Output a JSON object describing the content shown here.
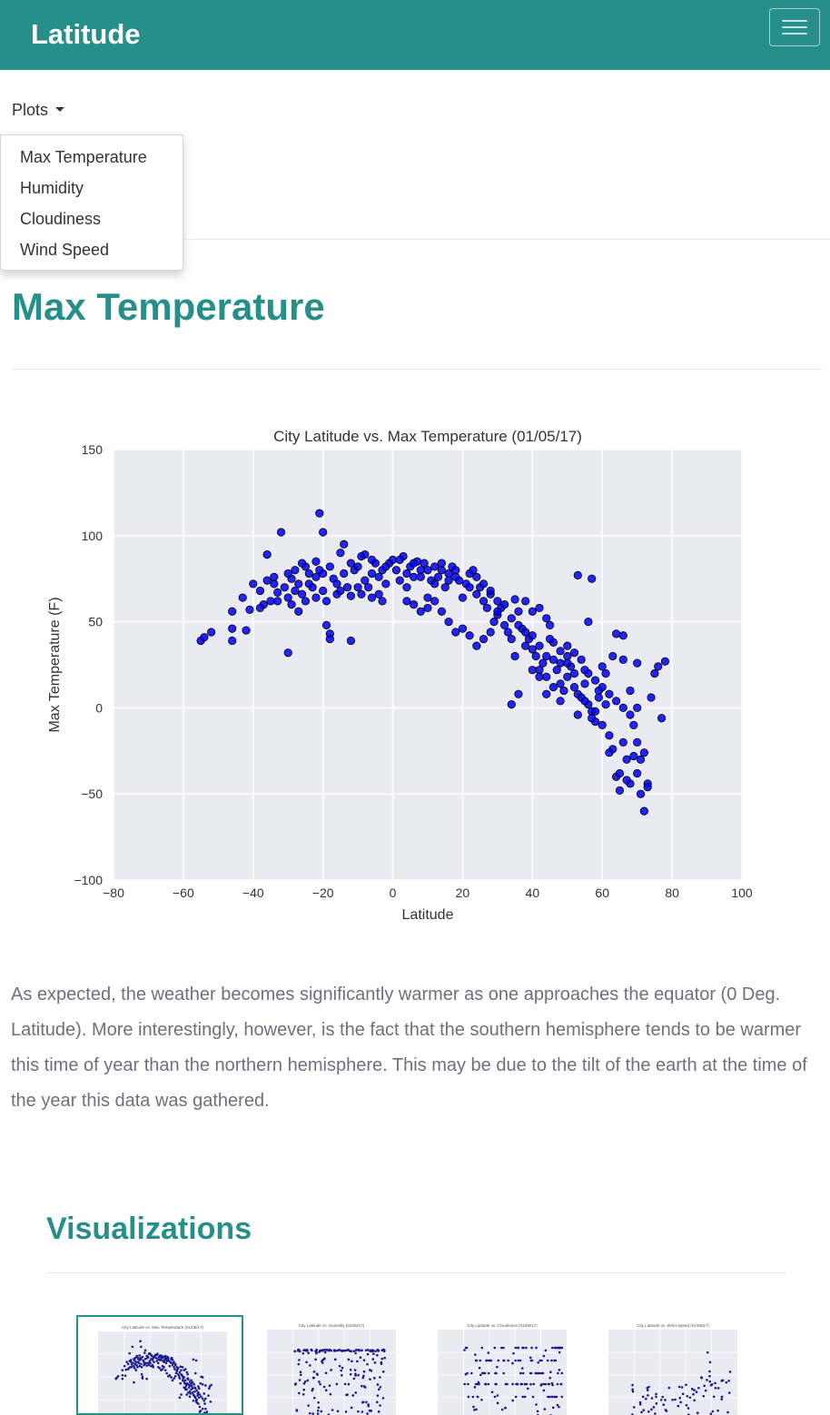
{
  "navbar": {
    "brand": "Latitude"
  },
  "nav": {
    "plots_label": "Plots",
    "menu_items": [
      "Max Temperature",
      "Humidity",
      "Cloudiness",
      "Wind Speed"
    ]
  },
  "page": {
    "title": "Max Temperature",
    "description": "As expected, the weather becomes significantly warmer as one approaches the equator (0 Deg. Latitude). More interestingly, however, is the fact that the southern hemisphere tends to be warmer this time of year than the northern hemisphere. This may be due to the tilt of the earth at the time of the year this data was gathered."
  },
  "visualizations": {
    "title": "Visualizations",
    "thumbs": [
      {
        "title": "City Latitude vs. Max Temperature (01/05/17)"
      },
      {
        "title": "City Latitude vs. Humidity (01/05/17)"
      },
      {
        "title": "City Latitude vs. Cloudiness (01/05/17)"
      },
      {
        "title": "City Latitude vs. Wind Speed (01/05/17)"
      }
    ]
  },
  "colors": {
    "accent": "#268f8a",
    "plot_bg": "#eaeaf2",
    "point": "#0000ff"
  },
  "chart_data": {
    "type": "scatter",
    "title": "City Latitude vs. Max Temperature (01/05/17)",
    "xlabel": "Latitude",
    "ylabel": "Max Temperature (F)",
    "xlim": [
      -80,
      100
    ],
    "ylim": [
      -100,
      150
    ],
    "xticks": [
      -80,
      -60,
      -40,
      -20,
      0,
      20,
      40,
      60,
      80,
      100
    ],
    "yticks": [
      -100,
      -50,
      0,
      50,
      100,
      150
    ],
    "tick_labels_x": [
      "−80",
      "−60",
      "−40",
      "−20",
      "0",
      "20",
      "40",
      "60",
      "80",
      "100"
    ],
    "tick_labels_y": [
      "−100",
      "−50",
      "0",
      "50",
      "100",
      "150"
    ],
    "grid": true,
    "points": [
      [
        -55,
        39
      ],
      [
        -54,
        41
      ],
      [
        -52,
        44
      ],
      [
        -46,
        56
      ],
      [
        -46,
        46
      ],
      [
        -46,
        39
      ],
      [
        -43,
        64
      ],
      [
        -42,
        45
      ],
      [
        -41,
        57
      ],
      [
        -38,
        68
      ],
      [
        -37,
        60
      ],
      [
        -36,
        89
      ],
      [
        -35,
        62
      ],
      [
        -34,
        72
      ],
      [
        -33,
        67
      ],
      [
        -32,
        102
      ],
      [
        -31,
        70
      ],
      [
        -30,
        64
      ],
      [
        -30,
        32
      ],
      [
        -29,
        75
      ],
      [
        -28,
        80
      ],
      [
        -27,
        72
      ],
      [
        -26,
        66
      ],
      [
        -25,
        82
      ],
      [
        -24,
        78
      ],
      [
        -23,
        70
      ],
      [
        -22,
        85
      ],
      [
        -21,
        113
      ],
      [
        -21,
        80
      ],
      [
        -20,
        102
      ],
      [
        -20,
        68
      ],
      [
        -19,
        48
      ],
      [
        -18,
        43
      ],
      [
        -18,
        40
      ],
      [
        -17,
        75
      ],
      [
        -16,
        72
      ],
      [
        -15,
        90
      ],
      [
        -14,
        95
      ],
      [
        -13,
        70
      ],
      [
        -12,
        65
      ],
      [
        -12,
        39
      ],
      [
        -11,
        80
      ],
      [
        -10,
        82
      ],
      [
        -9,
        88
      ],
      [
        -8,
        89
      ],
      [
        -7,
        70
      ],
      [
        -6,
        78
      ],
      [
        -5,
        84
      ],
      [
        -4,
        66
      ],
      [
        -3,
        80
      ],
      [
        -2,
        72
      ],
      [
        -1,
        84
      ],
      [
        0,
        86
      ],
      [
        1,
        80
      ],
      [
        2,
        74
      ],
      [
        3,
        88
      ],
      [
        4,
        78
      ],
      [
        5,
        82
      ],
      [
        6,
        76
      ],
      [
        7,
        85
      ],
      [
        8,
        80
      ],
      [
        9,
        84
      ],
      [
        10,
        58
      ],
      [
        11,
        74
      ],
      [
        12,
        82
      ],
      [
        13,
        76
      ],
      [
        14,
        80
      ],
      [
        15,
        70
      ],
      [
        16,
        78
      ],
      [
        17,
        82
      ],
      [
        18,
        76
      ],
      [
        19,
        74
      ],
      [
        20,
        64
      ],
      [
        21,
        72
      ],
      [
        22,
        78
      ],
      [
        23,
        80
      ],
      [
        24,
        66
      ],
      [
        25,
        70
      ],
      [
        26,
        62
      ],
      [
        27,
        58
      ],
      [
        28,
        66
      ],
      [
        29,
        50
      ],
      [
        30,
        54
      ],
      [
        31,
        58
      ],
      [
        32,
        48
      ],
      [
        33,
        44
      ],
      [
        34,
        40
      ],
      [
        35,
        30
      ],
      [
        36,
        56
      ],
      [
        37,
        46
      ],
      [
        38,
        36
      ],
      [
        39,
        40
      ],
      [
        40,
        34
      ],
      [
        41,
        30
      ],
      [
        42,
        22
      ],
      [
        43,
        26
      ],
      [
        44,
        18
      ],
      [
        45,
        48
      ],
      [
        46,
        38
      ],
      [
        47,
        22
      ],
      [
        48,
        14
      ],
      [
        49,
        10
      ],
      [
        50,
        30
      ],
      [
        51,
        24
      ],
      [
        52,
        20
      ],
      [
        53,
        8
      ],
      [
        54,
        6
      ],
      [
        55,
        14
      ],
      [
        56,
        2
      ],
      [
        57,
        -2
      ],
      [
        58,
        -8
      ],
      [
        59,
        10
      ],
      [
        60,
        24
      ],
      [
        61,
        20
      ],
      [
        62,
        -16
      ],
      [
        63,
        -24
      ],
      [
        64,
        -40
      ],
      [
        65,
        -48
      ],
      [
        66,
        -20
      ],
      [
        67,
        -30
      ],
      [
        68,
        -44
      ],
      [
        69,
        -10
      ],
      [
        70,
        -38
      ],
      [
        71,
        -50
      ],
      [
        72,
        -60
      ],
      [
        73,
        -44
      ],
      [
        74,
        6
      ],
      [
        75,
        20
      ],
      [
        76,
        24
      ],
      [
        77,
        -6
      ],
      [
        78,
        27
      ],
      [
        -40,
        72
      ],
      [
        -38,
        58
      ],
      [
        -36,
        74
      ],
      [
        -34,
        76
      ],
      [
        -30,
        78
      ],
      [
        -28,
        68
      ],
      [
        -26,
        84
      ],
      [
        -24,
        72
      ],
      [
        -22,
        76
      ],
      [
        -20,
        78
      ],
      [
        -18,
        82
      ],
      [
        -16,
        66
      ],
      [
        -14,
        78
      ],
      [
        -12,
        84
      ],
      [
        -10,
        70
      ],
      [
        -8,
        74
      ],
      [
        -6,
        86
      ],
      [
        -4,
        76
      ],
      [
        -2,
        82
      ],
      [
        2,
        86
      ],
      [
        4,
        70
      ],
      [
        6,
        84
      ],
      [
        8,
        76
      ],
      [
        10,
        80
      ],
      [
        12,
        72
      ],
      [
        14,
        84
      ],
      [
        16,
        74
      ],
      [
        18,
        80
      ],
      [
        22,
        70
      ],
      [
        24,
        76
      ],
      [
        26,
        72
      ],
      [
        28,
        68
      ],
      [
        30,
        62
      ],
      [
        32,
        60
      ],
      [
        34,
        52
      ],
      [
        36,
        48
      ],
      [
        38,
        44
      ],
      [
        40,
        42
      ],
      [
        42,
        36
      ],
      [
        44,
        30
      ],
      [
        46,
        28
      ],
      [
        48,
        26
      ],
      [
        50,
        36
      ],
      [
        52,
        32
      ],
      [
        54,
        28
      ],
      [
        56,
        20
      ],
      [
        58,
        16
      ],
      [
        60,
        12
      ],
      [
        62,
        8
      ],
      [
        64,
        4
      ],
      [
        66,
        0
      ],
      [
        68,
        -4
      ],
      [
        70,
        -20
      ],
      [
        72,
        -26
      ],
      [
        53,
        77
      ],
      [
        57,
        75
      ],
      [
        56,
        50
      ],
      [
        64,
        43
      ],
      [
        66,
        42
      ],
      [
        70,
        26
      ],
      [
        44,
        52
      ],
      [
        42,
        58
      ],
      [
        38,
        62
      ],
      [
        35,
        63
      ],
      [
        40,
        56
      ],
      [
        45,
        40
      ],
      [
        48,
        33
      ],
      [
        50,
        26
      ],
      [
        55,
        22
      ],
      [
        58,
        -2
      ],
      [
        60,
        -10
      ],
      [
        62,
        -26
      ],
      [
        65,
        -38
      ],
      [
        67,
        -42
      ],
      [
        69,
        -28
      ],
      [
        71,
        -30
      ],
      [
        73,
        -46
      ],
      [
        68,
        10
      ],
      [
        70,
        0
      ],
      [
        66,
        28
      ],
      [
        63,
        30
      ],
      [
        61,
        2
      ],
      [
        59,
        6
      ],
      [
        57,
        -6
      ],
      [
        55,
        4
      ],
      [
        53,
        -4
      ],
      [
        52,
        12
      ],
      [
        50,
        18
      ],
      [
        48,
        4
      ],
      [
        46,
        12
      ],
      [
        44,
        8
      ],
      [
        42,
        18
      ],
      [
        40,
        22
      ],
      [
        36,
        8
      ],
      [
        34,
        2
      ],
      [
        30,
        56
      ],
      [
        28,
        44
      ],
      [
        26,
        40
      ],
      [
        24,
        36
      ],
      [
        22,
        42
      ],
      [
        20,
        46
      ],
      [
        18,
        44
      ],
      [
        16,
        50
      ],
      [
        14,
        56
      ],
      [
        12,
        62
      ],
      [
        10,
        64
      ],
      [
        8,
        56
      ],
      [
        6,
        60
      ],
      [
        4,
        62
      ],
      [
        -3,
        62
      ],
      [
        -6,
        64
      ],
      [
        -9,
        66
      ],
      [
        -15,
        68
      ],
      [
        -19,
        62
      ],
      [
        -22,
        64
      ],
      [
        -25,
        62
      ],
      [
        -27,
        56
      ],
      [
        -29,
        60
      ],
      [
        -33,
        62
      ]
    ]
  }
}
